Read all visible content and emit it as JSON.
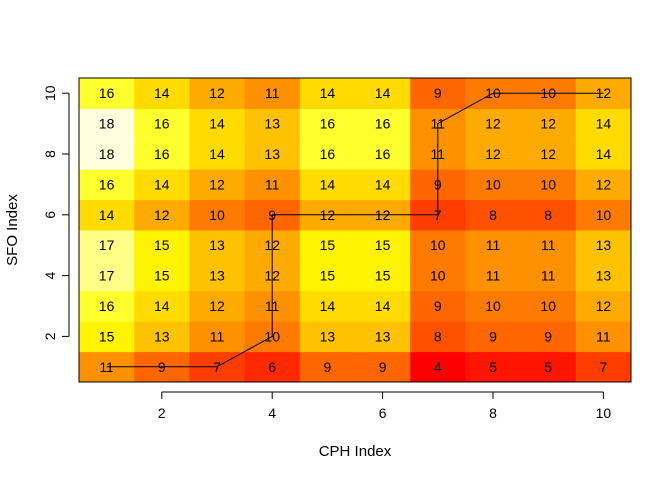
{
  "chart_data": {
    "type": "heatmap",
    "xlabel": "CPH Index",
    "ylabel": "SFO Index",
    "x_ticks": [
      2,
      4,
      6,
      8,
      10
    ],
    "y_ticks": [
      2,
      4,
      6,
      8,
      10
    ],
    "x_range": [
      0.5,
      10.5
    ],
    "y_range": [
      0.5,
      10.5
    ],
    "grid": false,
    "value_range": [
      4,
      18
    ],
    "colors": {
      "low": "#ff0000",
      "mid": "#ff8000",
      "high": "#ffff00",
      "top": "#ffffe0",
      "axis": "#000000",
      "path": "#000000"
    },
    "rows": [
      {
        "y": 1,
        "values": [
          11,
          9,
          7,
          6,
          9,
          9,
          4,
          5,
          5,
          7
        ]
      },
      {
        "y": 2,
        "values": [
          15,
          13,
          11,
          10,
          13,
          13,
          8,
          9,
          9,
          11
        ]
      },
      {
        "y": 3,
        "values": [
          16,
          14,
          12,
          11,
          14,
          14,
          9,
          10,
          10,
          12
        ]
      },
      {
        "y": 4,
        "values": [
          17,
          15,
          13,
          12,
          15,
          15,
          10,
          11,
          11,
          13
        ]
      },
      {
        "y": 5,
        "values": [
          17,
          15,
          13,
          12,
          15,
          15,
          10,
          11,
          11,
          13
        ]
      },
      {
        "y": 6,
        "values": [
          14,
          12,
          10,
          9,
          12,
          12,
          7,
          8,
          8,
          10
        ]
      },
      {
        "y": 7,
        "values": [
          16,
          14,
          12,
          11,
          14,
          14,
          9,
          10,
          10,
          12
        ]
      },
      {
        "y": 8,
        "values": [
          18,
          16,
          14,
          13,
          16,
          16,
          11,
          12,
          12,
          14
        ]
      },
      {
        "y": 9,
        "values": [
          18,
          16,
          14,
          13,
          16,
          16,
          11,
          12,
          12,
          14
        ]
      },
      {
        "y": 10,
        "values": [
          16,
          14,
          12,
          11,
          14,
          14,
          9,
          10,
          10,
          12
        ]
      }
    ],
    "path": [
      {
        "x": 1,
        "y": 1
      },
      {
        "x": 2,
        "y": 1
      },
      {
        "x": 3,
        "y": 1
      },
      {
        "x": 4,
        "y": 2
      },
      {
        "x": 4,
        "y": 3
      },
      {
        "x": 4,
        "y": 4
      },
      {
        "x": 4,
        "y": 5
      },
      {
        "x": 4,
        "y": 6
      },
      {
        "x": 5,
        "y": 6
      },
      {
        "x": 6,
        "y": 6
      },
      {
        "x": 7,
        "y": 6
      },
      {
        "x": 7,
        "y": 7
      },
      {
        "x": 7,
        "y": 8
      },
      {
        "x": 7,
        "y": 9
      },
      {
        "x": 8,
        "y": 10
      },
      {
        "x": 9,
        "y": 10
      },
      {
        "x": 10,
        "y": 10
      }
    ]
  }
}
